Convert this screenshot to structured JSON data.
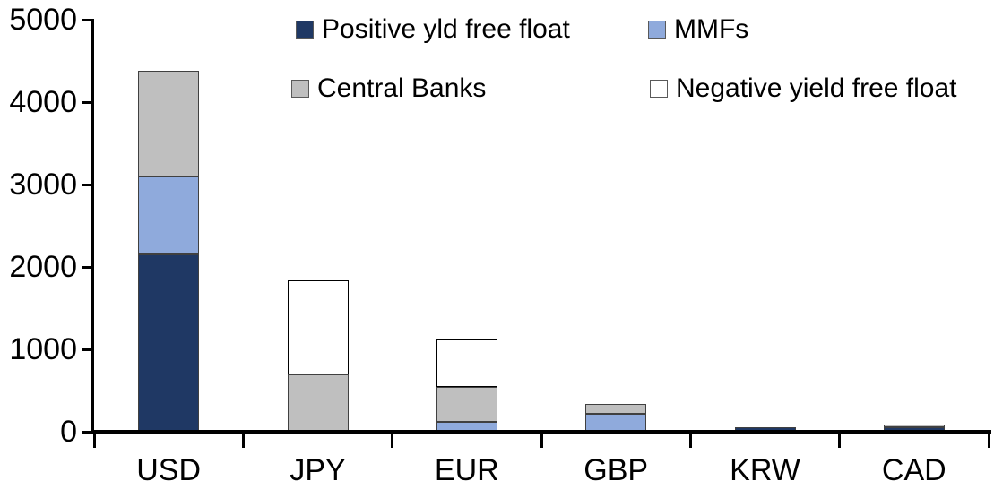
{
  "chart_data": {
    "type": "bar",
    "stacked": true,
    "categories": [
      "USD",
      "JPY",
      "EUR",
      "GBP",
      "KRW",
      "CAD"
    ],
    "series": [
      {
        "name": "Positive yld free float",
        "color": "#1F3864",
        "border": "#404040",
        "values": [
          2150,
          0,
          0,
          0,
          50,
          50
        ]
      },
      {
        "name": "MMFs",
        "color": "#8FAADC",
        "border": "#404040",
        "values": [
          950,
          0,
          120,
          220,
          0,
          0
        ]
      },
      {
        "name": "Central Banks",
        "color": "#BFBFBF",
        "border": "#404040",
        "values": [
          1280,
          700,
          425,
          115,
          0,
          35
        ]
      },
      {
        "name": "Negative yield free float",
        "color": "#FFFFFF",
        "border": "#000000",
        "values": [
          0,
          1140,
          575,
          0,
          0,
          0
        ]
      }
    ],
    "ylim": [
      0,
      5000
    ],
    "yticks": [
      0,
      1000,
      2000,
      3000,
      4000,
      5000
    ],
    "grid": false,
    "legend_position": "top",
    "axis_color": "#000000",
    "text_color": "#000000",
    "background": "#FFFFFF"
  }
}
